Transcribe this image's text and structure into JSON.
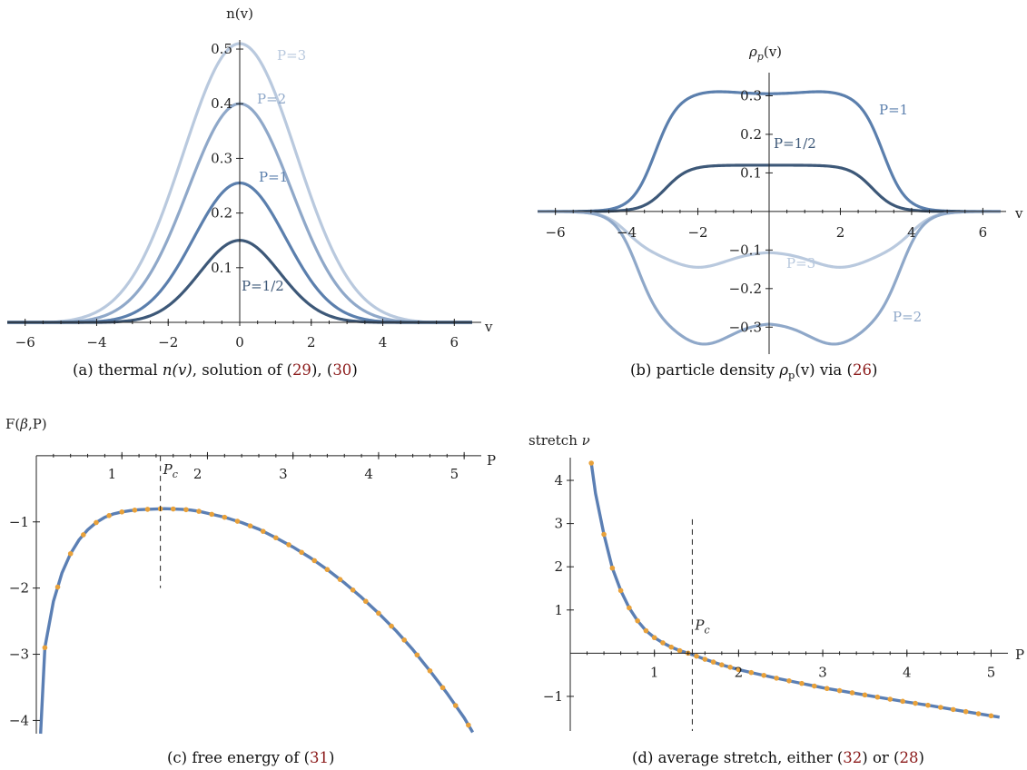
{
  "colors": {
    "p_half": "#3d5878",
    "p_one": "#5b7fad",
    "p_two": "#8fa8c9",
    "p_three": "#b9c9de",
    "curve": "#5b7fb4",
    "dots": "#e8a13a",
    "ref": "#8b1a1a"
  },
  "panels": {
    "a": {
      "caption_prefix": "(a) thermal ",
      "caption_math": "n(v)",
      "caption_mid": ", solution of (",
      "ref1": "29",
      "caption_mid2": "), (",
      "ref2": "30",
      "caption_end": ")"
    },
    "b": {
      "caption_prefix": "(b) particle density ",
      "caption_math": "ρ",
      "caption_sub": "p",
      "caption_math2": "(v)",
      "caption_mid": " via (",
      "ref1": "26",
      "caption_end": ")"
    },
    "c": {
      "caption_prefix": "(c) free energy of (",
      "ref1": "31",
      "caption_end": ")"
    },
    "d": {
      "caption_prefix": "(d) average stretch, either (",
      "ref1": "32",
      "caption_mid": ") or (",
      "ref2": "28",
      "caption_end": ")"
    }
  },
  "chart_data": [
    {
      "type": "line",
      "panel": "a",
      "xlabel": "v",
      "ylabel": "n(v)",
      "xlim": [
        -6.5,
        6.5
      ],
      "ylim": [
        0,
        0.52
      ],
      "xticks": [
        "−6",
        "−4",
        "−2",
        "0",
        "2",
        "4",
        "6"
      ],
      "yticks": [
        "0.1",
        "0.2",
        "0.3",
        "0.4",
        "0.5"
      ],
      "series": [
        {
          "name": "P=1/2",
          "peak": 0.15,
          "width": 1.7,
          "support": 3.9
        },
        {
          "name": "P=1",
          "peak": 0.255,
          "width": 1.95,
          "support": 4.4
        },
        {
          "name": "P=2",
          "peak": 0.4,
          "width": 2.2,
          "support": 4.9
        },
        {
          "name": "P=3",
          "peak": 0.51,
          "width": 2.4,
          "support": 5.3
        }
      ]
    },
    {
      "type": "line",
      "panel": "b",
      "xlabel": "v",
      "ylabel": "ρp(v)",
      "xlim": [
        -6.5,
        6.5
      ],
      "ylim": [
        -0.37,
        0.36
      ],
      "xticks": [
        "−6",
        "−4",
        "−2",
        "2",
        "4",
        "6"
      ],
      "yticks": [
        "0.3",
        "0.2",
        "0.1",
        "−0.1",
        "−0.2",
        "−0.3"
      ],
      "series": [
        {
          "name": "P=1",
          "center": 0.305,
          "shoulder": 0.312,
          "edge": 3.2
        },
        {
          "name": "P=1/2",
          "center": 0.12,
          "shoulder": 0.12,
          "edge": 2.9
        },
        {
          "name": "P=3",
          "center": -0.105,
          "shoulder": -0.145,
          "edge": 4.0
        },
        {
          "name": "P=2",
          "center": -0.29,
          "shoulder": -0.345,
          "edge": 3.7
        }
      ]
    },
    {
      "type": "line",
      "panel": "c",
      "xlabel": "P",
      "ylabel": "F(β,P)",
      "xlim": [
        0,
        5.2
      ],
      "ylim": [
        -4.2,
        0.3
      ],
      "xticks": [
        "1",
        "2",
        "3",
        "4",
        "5"
      ],
      "yticks": [
        "−1",
        "−2",
        "−3",
        "−4"
      ],
      "critical": {
        "label": "P",
        "sub": "c",
        "x": 1.45,
        "y_from": 0,
        "y_to": -2.0
      },
      "x": [
        0.05,
        0.1,
        0.2,
        0.3,
        0.4,
        0.5,
        0.6,
        0.7,
        0.8,
        0.9,
        1.0,
        1.1,
        1.2,
        1.3,
        1.4,
        1.5,
        1.6,
        1.7,
        1.8,
        1.9,
        2.0,
        2.2,
        2.4,
        2.6,
        2.8,
        3.0,
        3.2,
        3.4,
        3.6,
        3.8,
        4.0,
        4.2,
        4.4,
        4.6,
        4.8,
        5.0,
        5.1
      ],
      "y": [
        -4.2,
        -2.9,
        -2.2,
        -1.77,
        -1.48,
        -1.27,
        -1.12,
        -1.01,
        -0.93,
        -0.88,
        -0.85,
        -0.83,
        -0.815,
        -0.81,
        -0.805,
        -0.8,
        -0.805,
        -0.81,
        -0.82,
        -0.84,
        -0.87,
        -0.93,
        -1.01,
        -1.11,
        -1.24,
        -1.38,
        -1.54,
        -1.72,
        -1.92,
        -2.14,
        -2.38,
        -2.64,
        -2.93,
        -3.25,
        -3.59,
        -3.96,
        -4.18
      ],
      "dots_x": [
        0.1,
        0.25,
        0.4,
        0.55,
        0.7,
        0.85,
        1.0,
        1.15,
        1.3,
        1.45,
        1.6,
        1.75,
        1.9,
        2.05,
        2.2,
        2.35,
        2.5,
        2.65,
        2.8,
        2.95,
        3.1,
        3.25,
        3.4,
        3.55,
        3.7,
        3.85,
        4.0,
        4.15,
        4.3,
        4.45,
        4.6,
        4.75,
        4.9,
        5.05
      ]
    },
    {
      "type": "line",
      "panel": "d",
      "xlabel": "P",
      "ylabel": "stretch ν",
      "xlim": [
        0,
        5.2
      ],
      "ylim": [
        -1.8,
        4.4
      ],
      "xticks": [
        "1",
        "2",
        "3",
        "4",
        "5"
      ],
      "yticks": [
        "4",
        "3",
        "2",
        "1",
        "−1"
      ],
      "critical": {
        "label": "P",
        "sub": "c",
        "x": 1.45,
        "y_from": 3.1,
        "y_to": -1.8
      },
      "x": [
        0.25,
        0.3,
        0.4,
        0.5,
        0.6,
        0.7,
        0.8,
        0.9,
        1.0,
        1.1,
        1.2,
        1.3,
        1.4,
        1.5,
        1.6,
        1.8,
        2.0,
        2.2,
        2.5,
        2.8,
        3.0,
        3.3,
        3.6,
        4.0,
        4.3,
        4.6,
        5.0,
        5.1
      ],
      "y": [
        4.4,
        3.7,
        2.75,
        1.97,
        1.45,
        1.05,
        0.75,
        0.52,
        0.36,
        0.24,
        0.14,
        0.06,
        0.0,
        -0.07,
        -0.14,
        -0.27,
        -0.38,
        -0.47,
        -0.6,
        -0.72,
        -0.8,
        -0.9,
        -1.0,
        -1.13,
        -1.22,
        -1.32,
        -1.45,
        -1.48
      ],
      "dots_x": [
        0.25,
        0.4,
        0.5,
        0.6,
        0.7,
        0.8,
        0.9,
        1.0,
        1.1,
        1.2,
        1.3,
        1.4,
        1.5,
        1.6,
        1.7,
        1.8,
        1.9,
        2.0,
        2.15,
        2.3,
        2.45,
        2.6,
        2.75,
        2.9,
        3.05,
        3.2,
        3.35,
        3.5,
        3.65,
        3.8,
        3.95,
        4.1,
        4.25,
        4.4,
        4.55,
        4.7,
        4.85,
        5.0
      ]
    }
  ]
}
